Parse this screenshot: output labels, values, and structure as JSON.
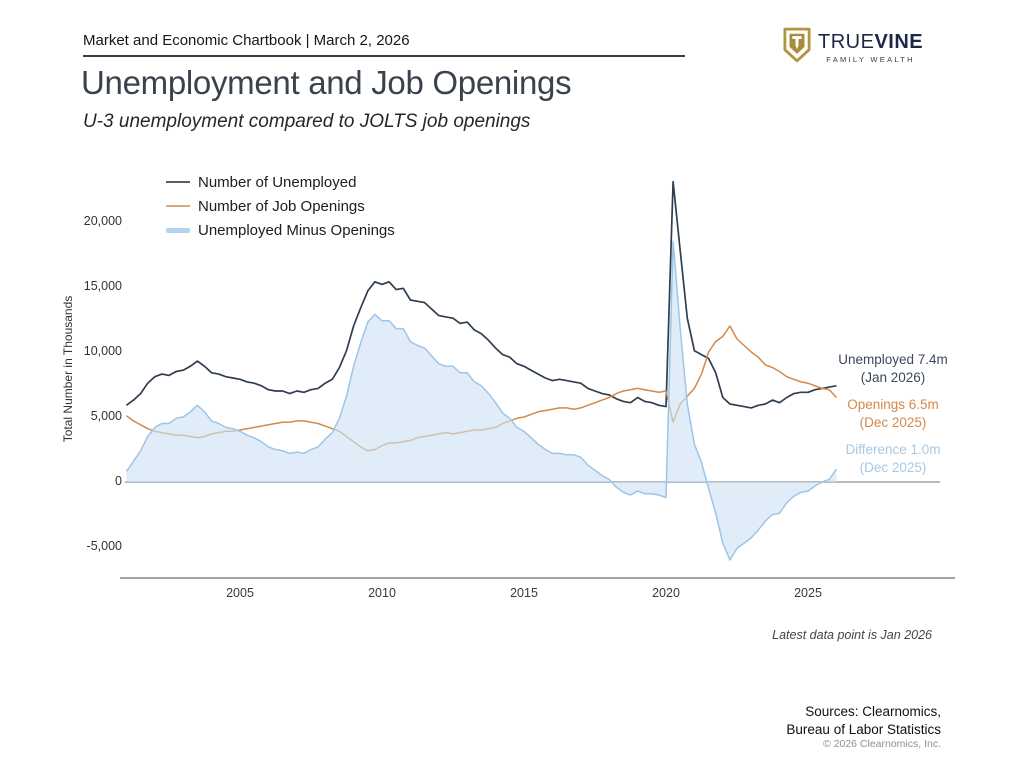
{
  "header": {
    "chartbook_label": "Market and Economic Chartbook | March 2, 2026"
  },
  "logo": {
    "brand_primary": "TRUE",
    "brand_secondary": "VINE",
    "tagline": "FAMILY WEALTH",
    "colors": {
      "gold": "#b3953f",
      "gold_dark": "#97803a",
      "navy": "#1c2848"
    }
  },
  "title": "Unemployment and Job Openings",
  "subtitle": "U-3 unemployment compared to JOLTS job openings",
  "legend": [
    {
      "label": "Number of Unemployed",
      "color": "#566069",
      "style": "line"
    },
    {
      "label": "Number of Job Openings",
      "color": "#dba77c",
      "style": "line"
    },
    {
      "label": "Unemployed Minus Openings",
      "color": "#b5d3ee",
      "style": "band"
    }
  ],
  "callouts": [
    {
      "line1": "Unemployed 7.4m",
      "line2": "(Jan 2026)",
      "color": "#3b4a5c"
    },
    {
      "line1": "Openings 6.5m",
      "line2": "(Dec 2025)",
      "color": "#d6894a"
    },
    {
      "line1": "Difference 1.0m",
      "line2": "(Dec 2025)",
      "color": "#a5c9e7"
    }
  ],
  "footnote": "Latest data point is Jan 2026",
  "sources": {
    "line1": "Sources: Clearnomics,",
    "line2": "Bureau of Labor Statistics",
    "copyright": "© 2026 Clearnomics, Inc."
  },
  "chart_data": {
    "type": "line",
    "title": "Unemployment and Job Openings",
    "ylabel": "Total Number in Thousands",
    "xlim": [
      2001,
      2026
    ],
    "ylim": [
      -7000,
      24000
    ],
    "grid": false,
    "zero_line": true,
    "legend_position": "top-left",
    "yticks": [
      20000,
      15000,
      10000,
      5000,
      0,
      -5000
    ],
    "ytick_labels": [
      "20,000",
      "15,000",
      "10,000",
      "5,000",
      "0",
      "-5,000"
    ],
    "xticks": [
      2005,
      2010,
      2015,
      2020,
      2025
    ],
    "xtick_labels": [
      "2005",
      "2010",
      "2015",
      "2020",
      "2025"
    ],
    "x": [
      2001,
      2001.25,
      2001.5,
      2001.75,
      2002,
      2002.25,
      2002.5,
      2002.75,
      2003,
      2003.25,
      2003.5,
      2003.75,
      2004,
      2004.25,
      2004.5,
      2004.75,
      2005,
      2005.25,
      2005.5,
      2005.75,
      2006,
      2006.25,
      2006.5,
      2006.75,
      2007,
      2007.25,
      2007.5,
      2007.75,
      2008,
      2008.25,
      2008.5,
      2008.75,
      2009,
      2009.25,
      2009.5,
      2009.75,
      2010,
      2010.25,
      2010.5,
      2010.75,
      2011,
      2011.25,
      2011.5,
      2011.75,
      2012,
      2012.25,
      2012.5,
      2012.75,
      2013,
      2013.25,
      2013.5,
      2013.75,
      2014,
      2014.25,
      2014.5,
      2014.75,
      2015,
      2015.25,
      2015.5,
      2015.75,
      2016,
      2016.25,
      2016.5,
      2016.75,
      2017,
      2017.25,
      2017.5,
      2017.75,
      2018,
      2018.25,
      2018.5,
      2018.75,
      2019,
      2019.25,
      2019.5,
      2019.75,
      2020,
      2020.25,
      2020.5,
      2020.75,
      2021,
      2021.25,
      2021.5,
      2021.75,
      2022,
      2022.25,
      2022.5,
      2022.75,
      2023,
      2023.25,
      2023.5,
      2023.75,
      2024,
      2024.25,
      2024.5,
      2024.75,
      2025,
      2025.25,
      2025.5,
      2025.75,
      2026
    ],
    "series": [
      {
        "name": "Number of Unemployed",
        "type": "line",
        "color": "#2f3e4e",
        "latest": {
          "label": "Unemployed 7.4m",
          "period": "Jan 2026",
          "value_thousands": 7400
        },
        "values": [
          5900,
          6300,
          6800,
          7600,
          8100,
          8300,
          8200,
          8500,
          8600,
          8900,
          9300,
          8900,
          8400,
          8300,
          8100,
          8000,
          7900,
          7700,
          7600,
          7400,
          7100,
          7000,
          7000,
          6800,
          7000,
          6900,
          7100,
          7200,
          7600,
          7900,
          8800,
          10100,
          12000,
          13400,
          14700,
          15400,
          15200,
          15400,
          14800,
          14900,
          14000,
          13900,
          13800,
          13300,
          12800,
          12700,
          12600,
          12200,
          12300,
          11700,
          11400,
          10900,
          10300,
          9800,
          9600,
          9100,
          8900,
          8600,
          8300,
          8000,
          7800,
          7900,
          7800,
          7700,
          7600,
          7200,
          7000,
          6800,
          6700,
          6400,
          6200,
          6100,
          6500,
          6200,
          6100,
          5900,
          5800,
          23100,
          17800,
          12600,
          10100,
          9800,
          9500,
          8400,
          6500,
          6000,
          5900,
          5800,
          5700,
          5900,
          6000,
          6300,
          6100,
          6500,
          6800,
          6900,
          6900,
          7100,
          7200,
          7300,
          7400
        ]
      },
      {
        "name": "Number of Job Openings",
        "type": "line",
        "color": "#d18a4b",
        "latest": {
          "label": "Openings 6.5m",
          "period": "Dec 2025",
          "value_thousands": 6500
        },
        "values": [
          5100,
          4700,
          4400,
          4100,
          3900,
          3800,
          3700,
          3600,
          3600,
          3500,
          3400,
          3500,
          3700,
          3800,
          3900,
          3900,
          4000,
          4100,
          4200,
          4300,
          4400,
          4500,
          4600,
          4600,
          4700,
          4700,
          4600,
          4500,
          4300,
          4100,
          3900,
          3500,
          3100,
          2700,
          2400,
          2500,
          2800,
          3000,
          3000,
          3100,
          3200,
          3400,
          3500,
          3600,
          3700,
          3800,
          3700,
          3800,
          3900,
          4000,
          4000,
          4100,
          4200,
          4500,
          4700,
          4900,
          5000,
          5200,
          5400,
          5500,
          5600,
          5700,
          5700,
          5600,
          5700,
          5900,
          6100,
          6300,
          6500,
          6800,
          7000,
          7100,
          7200,
          7100,
          7000,
          6900,
          7000,
          4600,
          6000,
          6600,
          7200,
          8300,
          10000,
          10800,
          11200,
          12000,
          11000,
          10500,
          10000,
          9600,
          9000,
          8800,
          8500,
          8100,
          7900,
          7700,
          7600,
          7400,
          7200,
          7100,
          6500
        ]
      },
      {
        "name": "Unemployed Minus Openings",
        "type": "area",
        "color": "#cde2f5",
        "edge_color": "#9dc5e7",
        "latest": {
          "label": "Difference 1.0m",
          "period": "Dec 2025",
          "value_thousands": 1000
        },
        "values": [
          800,
          1600,
          2400,
          3500,
          4200,
          4500,
          4500,
          4900,
          5000,
          5400,
          5900,
          5400,
          4700,
          4500,
          4200,
          4100,
          3900,
          3600,
          3400,
          3100,
          2700,
          2500,
          2400,
          2200,
          2300,
          2200,
          2500,
          2700,
          3300,
          3800,
          4900,
          6600,
          8900,
          10700,
          12300,
          12900,
          12400,
          12400,
          11800,
          11800,
          10800,
          10500,
          10300,
          9700,
          9100,
          8900,
          8900,
          8400,
          8400,
          7700,
          7400,
          6800,
          6100,
          5300,
          4900,
          4200,
          3900,
          3400,
          2900,
          2500,
          2200,
          2200,
          2100,
          2100,
          1900,
          1300,
          900,
          500,
          200,
          -400,
          -800,
          -1000,
          -700,
          -900,
          -900,
          -1000,
          -1200,
          18500,
          11800,
          6000,
          2900,
          1500,
          -500,
          -2400,
          -4700,
          -6000,
          -5100,
          -4700,
          -4300,
          -3700,
          -3000,
          -2500,
          -2400,
          -1600,
          -1100,
          -800,
          -700,
          -300,
          0,
          200,
          1000
        ]
      }
    ]
  }
}
